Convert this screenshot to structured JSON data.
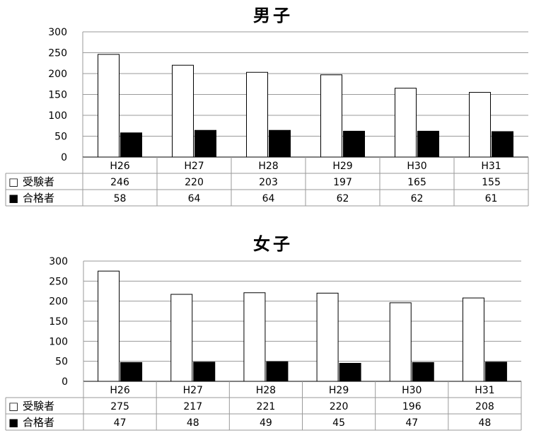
{
  "chart_data": [
    {
      "type": "bar",
      "title": "男子",
      "categories": [
        "H26",
        "H27",
        "H28",
        "H29",
        "H30",
        "H31"
      ],
      "ylim": [
        0,
        300
      ],
      "yticks": [
        0,
        50,
        100,
        150,
        200,
        250,
        300
      ],
      "grid": true,
      "series": [
        {
          "name": "受験者",
          "marker": "□",
          "color": "#ffffff",
          "values": [
            246,
            220,
            203,
            197,
            165,
            155
          ]
        },
        {
          "name": "合格者",
          "marker": "■",
          "color": "#000000",
          "values": [
            58,
            64,
            64,
            62,
            62,
            61
          ]
        }
      ]
    },
    {
      "type": "bar",
      "title": "女子",
      "categories": [
        "H26",
        "H27",
        "H28",
        "H29",
        "H30",
        "H31"
      ],
      "ylim": [
        0,
        300
      ],
      "yticks": [
        0,
        50,
        100,
        150,
        200,
        250,
        300
      ],
      "grid": true,
      "series": [
        {
          "name": "受験者",
          "marker": "□",
          "color": "#ffffff",
          "values": [
            275,
            217,
            221,
            220,
            196,
            208
          ]
        },
        {
          "name": "合格者",
          "marker": "■",
          "color": "#000000",
          "values": [
            47,
            48,
            49,
            45,
            47,
            48
          ]
        }
      ]
    }
  ]
}
